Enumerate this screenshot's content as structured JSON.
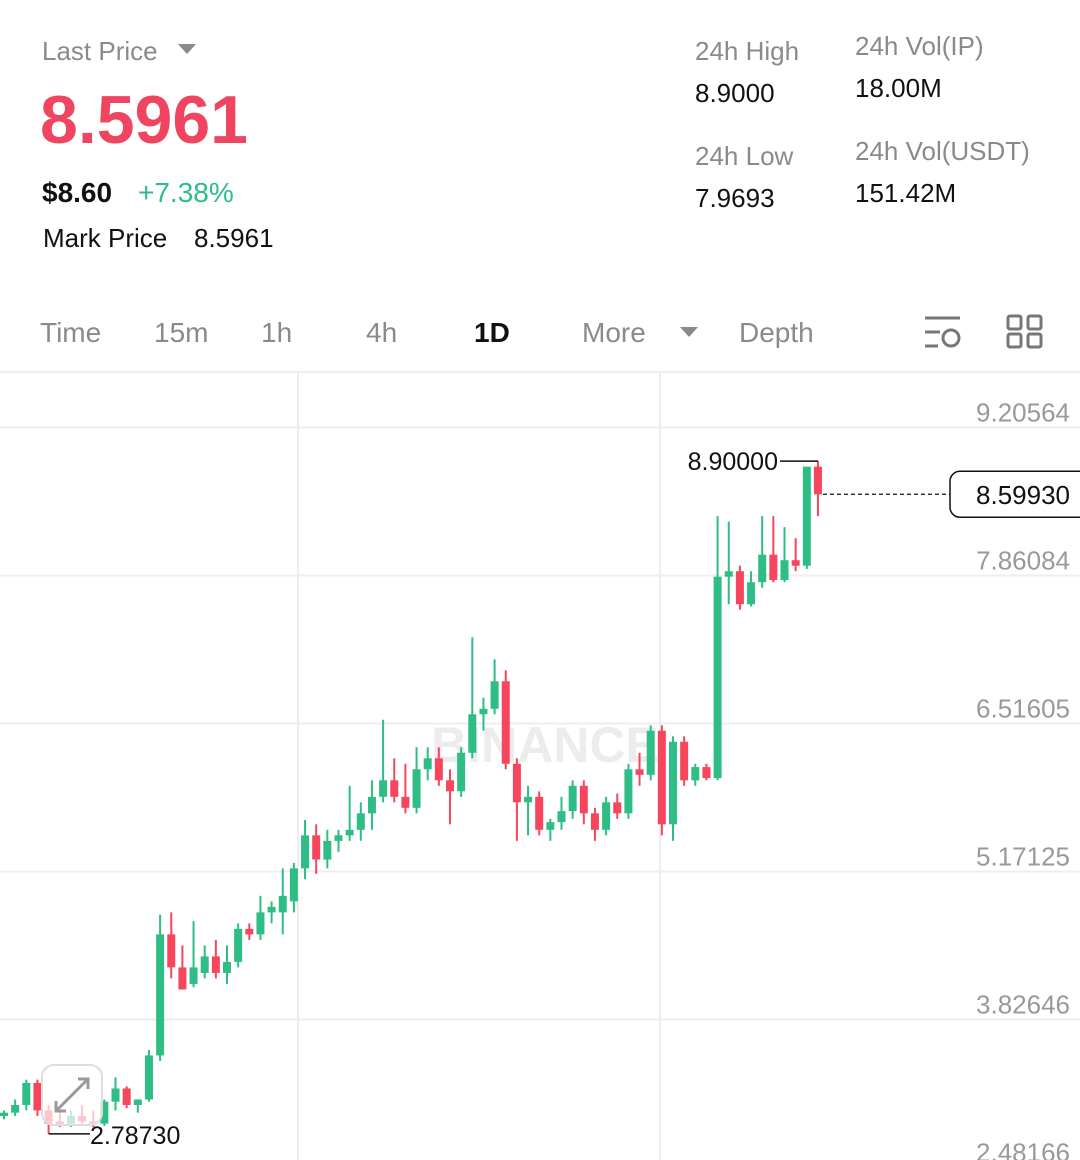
{
  "header": {
    "last_price_label": "Last Price",
    "price": "8.5961",
    "usd": "$8.60",
    "change": "+7.38%",
    "mark_label": "Mark Price",
    "mark_value": "8.5961"
  },
  "stats": [
    {
      "label": "24h High",
      "value": "8.9000"
    },
    {
      "label": "24h Vol(IP)",
      "value": "18.00M"
    },
    {
      "label": "24h Low",
      "value": "7.9693"
    },
    {
      "label": "24h Vol(USDT)",
      "value": "151.42M"
    }
  ],
  "tabs": [
    "Time",
    "15m",
    "1h",
    "4h",
    "1D",
    "More",
    "Depth"
  ],
  "active_tab": 4,
  "chart_data": {
    "type": "candlestick",
    "watermark": "BINANCE",
    "up_color": "#2ebd85",
    "down_color": "#f6465d",
    "ylim": [
      2.55,
      9.71
    ],
    "yticks": [
      9.20564,
      7.86084,
      6.51605,
      5.17125,
      3.82646,
      2.48166
    ],
    "grid": true,
    "high_label": "8.90000",
    "low_label": "2.78730",
    "last_label": "8.59930",
    "open": [
      2.95,
      2.98,
      3.05,
      3.25,
      3.0,
      2.9,
      2.88,
      2.95,
      2.9,
      2.88,
      3.08,
      3.2,
      3.05,
      3.1,
      3.5,
      4.6,
      4.3,
      4.15,
      4.25,
      4.4,
      4.25,
      4.35,
      4.65,
      4.6,
      4.8,
      4.8,
      4.9,
      5.2,
      5.5,
      5.28,
      5.45,
      5.5,
      5.55,
      5.7,
      5.85,
      6.0,
      5.85,
      5.75,
      6.1,
      6.2,
      6.0,
      5.9,
      6.25,
      6.6,
      6.65,
      6.9,
      6.15,
      5.8,
      5.85,
      5.55,
      5.62,
      5.72,
      5.95,
      5.7,
      5.55,
      5.8,
      5.7,
      6.1,
      6.05,
      6.45,
      5.6,
      6.35,
      6.0,
      6.12,
      6.02,
      7.85,
      7.9,
      7.6,
      7.8,
      8.05,
      7.82,
      8.0,
      7.95,
      8.85
    ],
    "high": [
      3.0,
      3.1,
      3.28,
      3.28,
      3.05,
      3.0,
      3.0,
      3.05,
      3.0,
      3.1,
      3.3,
      3.22,
      3.1,
      3.55,
      4.78,
      4.8,
      4.5,
      4.72,
      4.5,
      4.55,
      4.5,
      4.7,
      4.7,
      4.95,
      4.9,
      5.2,
      5.25,
      5.64,
      5.6,
      5.55,
      5.55,
      5.95,
      5.8,
      6.0,
      6.55,
      6.2,
      6.15,
      6.3,
      6.3,
      6.3,
      6.1,
      6.3,
      7.3,
      6.75,
      7.1,
      7.0,
      6.2,
      5.95,
      5.9,
      5.65,
      5.85,
      6.0,
      6.0,
      5.75,
      5.85,
      5.88,
      6.15,
      6.25,
      6.5,
      6.5,
      6.4,
      6.4,
      6.15,
      6.15,
      8.4,
      8.35,
      7.95,
      7.9,
      8.4,
      8.4,
      8.3,
      8.2,
      8.85,
      8.9
    ],
    "low": [
      2.92,
      2.95,
      3.0,
      2.95,
      2.7873,
      2.85,
      2.85,
      2.88,
      2.85,
      2.86,
      3.0,
      3.02,
      2.98,
      3.08,
      3.45,
      4.2,
      4.1,
      4.12,
      4.2,
      4.2,
      4.15,
      4.3,
      4.55,
      4.55,
      4.7,
      4.6,
      4.8,
      5.1,
      5.15,
      5.2,
      5.35,
      5.45,
      5.45,
      5.55,
      5.8,
      5.8,
      5.7,
      5.7,
      6.0,
      5.95,
      5.6,
      5.85,
      6.2,
      6.45,
      6.6,
      6.1,
      5.45,
      5.5,
      5.5,
      5.45,
      5.55,
      5.65,
      5.6,
      5.45,
      5.5,
      5.65,
      5.65,
      5.95,
      6.0,
      5.5,
      5.45,
      5.95,
      5.95,
      6.0,
      6.0,
      7.6,
      7.55,
      7.58,
      7.75,
      7.8,
      7.8,
      7.9,
      7.92,
      8.4
    ],
    "close": [
      2.98,
      3.05,
      3.25,
      3.0,
      2.88,
      2.87,
      2.95,
      2.9,
      2.88,
      3.08,
      3.2,
      3.05,
      3.1,
      3.5,
      4.6,
      4.3,
      4.1,
      4.3,
      4.4,
      4.25,
      4.35,
      4.65,
      4.6,
      4.8,
      4.85,
      4.95,
      5.2,
      5.5,
      5.28,
      5.45,
      5.5,
      5.55,
      5.7,
      5.85,
      6.0,
      5.85,
      5.75,
      6.1,
      6.2,
      6.0,
      5.9,
      6.25,
      6.6,
      6.65,
      6.9,
      6.15,
      5.8,
      5.85,
      5.55,
      5.62,
      5.72,
      5.95,
      5.7,
      5.55,
      5.8,
      5.7,
      6.1,
      6.05,
      6.45,
      5.6,
      6.35,
      6.0,
      6.12,
      6.02,
      7.85,
      7.9,
      7.6,
      7.8,
      8.05,
      7.82,
      8.0,
      7.95,
      8.85,
      8.5993
    ]
  }
}
